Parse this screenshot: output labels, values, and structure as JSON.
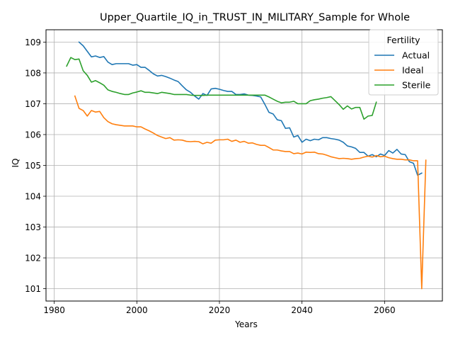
{
  "chart_data": {
    "type": "line",
    "title": "Upper_Quartile_IQ_in_TRUST_IN_MILITARY_Sample for Whole",
    "xlabel": "Years",
    "ylabel": "IQ",
    "xlim": [
      1978,
      2074
    ],
    "ylim": [
      100.6,
      109.4
    ],
    "xticks": [
      1980,
      2000,
      2020,
      2040,
      2060
    ],
    "yticks": [
      101,
      102,
      103,
      104,
      105,
      106,
      107,
      108,
      109
    ],
    "grid": true,
    "legend": {
      "title": "Fertility",
      "placement": "top-right"
    },
    "colors": {
      "Actual": "#1f77b4",
      "Ideal": "#ff7f0e",
      "Sterile": "#2ca02c"
    },
    "series": [
      {
        "name": "Actual",
        "x": [
          1986,
          1987,
          1988,
          1989,
          1990,
          1991,
          1992,
          1993,
          1994,
          1995,
          1996,
          1997,
          1998,
          1999,
          2000,
          2001,
          2002,
          2003,
          2004,
          2005,
          2006,
          2007,
          2008,
          2009,
          2010,
          2011,
          2012,
          2013,
          2014,
          2015,
          2016,
          2017,
          2018,
          2019,
          2020,
          2021,
          2022,
          2023,
          2024,
          2025,
          2026,
          2027,
          2028,
          2029,
          2030,
          2031,
          2032,
          2033,
          2034,
          2035,
          2036,
          2037,
          2038,
          2039,
          2040,
          2041,
          2042,
          2043,
          2044,
          2045,
          2046,
          2047,
          2048,
          2049,
          2050,
          2051,
          2052,
          2053,
          2054,
          2055,
          2056,
          2057,
          2058,
          2059,
          2060,
          2061,
          2062,
          2063,
          2064,
          2065,
          2066,
          2067,
          2068,
          2069,
          2070
        ],
        "y": [
          109.0,
          108.88,
          108.7,
          108.52,
          108.55,
          108.5,
          108.53,
          108.35,
          108.27,
          108.3,
          108.3,
          108.3,
          108.3,
          108.25,
          108.27,
          108.18,
          108.18,
          108.08,
          107.97,
          107.9,
          107.92,
          107.88,
          107.83,
          107.77,
          107.72,
          107.58,
          107.45,
          107.37,
          107.25,
          107.15,
          107.33,
          107.27,
          107.48,
          107.5,
          107.47,
          107.43,
          107.4,
          107.4,
          107.3,
          107.3,
          107.32,
          107.28,
          107.27,
          107.25,
          107.22,
          106.98,
          106.72,
          106.67,
          106.48,
          106.45,
          106.2,
          106.22,
          105.92,
          105.97,
          105.75,
          105.85,
          105.8,
          105.85,
          105.83,
          105.9,
          105.9,
          105.87,
          105.85,
          105.82,
          105.75,
          105.63,
          105.6,
          105.55,
          105.42,
          105.42,
          105.3,
          105.35,
          105.28,
          105.37,
          105.32,
          105.48,
          105.4,
          105.52,
          105.37,
          105.35,
          105.12,
          105.07,
          104.68,
          104.75,
          null
        ]
      },
      {
        "name": "Ideal",
        "x": [
          1985,
          1986,
          1987,
          1988,
          1989,
          1990,
          1991,
          1992,
          1993,
          1994,
          1995,
          1996,
          1997,
          1998,
          1999,
          2000,
          2001,
          2002,
          2003,
          2004,
          2005,
          2006,
          2007,
          2008,
          2009,
          2010,
          2011,
          2012,
          2013,
          2014,
          2015,
          2016,
          2017,
          2018,
          2019,
          2020,
          2021,
          2022,
          2023,
          2024,
          2025,
          2026,
          2027,
          2028,
          2029,
          2030,
          2031,
          2032,
          2033,
          2034,
          2035,
          2036,
          2037,
          2038,
          2039,
          2040,
          2041,
          2042,
          2043,
          2044,
          2045,
          2046,
          2047,
          2048,
          2049,
          2050,
          2051,
          2052,
          2053,
          2054,
          2055,
          2056,
          2057,
          2058,
          2059,
          2060,
          2061,
          2062,
          2063,
          2064,
          2065,
          2066,
          2067,
          2068,
          2069,
          2070
        ],
        "y": [
          107.25,
          106.85,
          106.78,
          106.6,
          106.78,
          106.73,
          106.75,
          106.55,
          106.42,
          106.35,
          106.32,
          106.3,
          106.28,
          106.28,
          106.28,
          106.25,
          106.25,
          106.18,
          106.12,
          106.05,
          105.97,
          105.92,
          105.87,
          105.9,
          105.82,
          105.83,
          105.82,
          105.78,
          105.77,
          105.78,
          105.77,
          105.7,
          105.75,
          105.72,
          105.82,
          105.83,
          105.83,
          105.85,
          105.78,
          105.82,
          105.75,
          105.78,
          105.72,
          105.73,
          105.68,
          105.65,
          105.65,
          105.58,
          105.5,
          105.5,
          105.47,
          105.45,
          105.45,
          105.38,
          105.4,
          105.37,
          105.43,
          105.42,
          105.43,
          105.38,
          105.37,
          105.33,
          105.28,
          105.25,
          105.22,
          105.23,
          105.22,
          105.2,
          105.22,
          105.23,
          105.27,
          105.3,
          105.27,
          105.32,
          105.28,
          105.3,
          105.25,
          105.22,
          105.2,
          105.2,
          105.18,
          105.18,
          105.15,
          105.15,
          101.0,
          105.17
        ]
      },
      {
        "name": "Sterile",
        "x": [
          1983,
          1984,
          1985,
          1986,
          1987,
          1988,
          1989,
          1990,
          1991,
          1992,
          1993,
          1994,
          1995,
          1996,
          1997,
          1998,
          1999,
          2000,
          2001,
          2002,
          2003,
          2004,
          2005,
          2006,
          2007,
          2008,
          2009,
          2010,
          2011,
          2012,
          2013,
          2014,
          2015,
          2016,
          2017,
          2018,
          2019,
          2020,
          2021,
          2022,
          2023,
          2024,
          2025,
          2026,
          2027,
          2028,
          2029,
          2030,
          2031,
          2032,
          2033,
          2034,
          2035,
          2036,
          2037,
          2038,
          2039,
          2040,
          2041,
          2042,
          2043,
          2044,
          2045,
          2046,
          2047,
          2048,
          2049,
          2050,
          2051,
          2052,
          2053,
          2054,
          2055,
          2056,
          2057,
          2058
        ],
        "y": [
          108.22,
          108.5,
          108.43,
          108.45,
          108.07,
          107.92,
          107.7,
          107.75,
          107.68,
          107.6,
          107.45,
          107.4,
          107.37,
          107.33,
          107.3,
          107.3,
          107.35,
          107.38,
          107.42,
          107.37,
          107.37,
          107.35,
          107.33,
          107.37,
          107.35,
          107.33,
          107.3,
          107.3,
          107.3,
          107.3,
          107.28,
          107.27,
          107.27,
          107.27,
          107.28,
          107.28,
          107.28,
          107.28,
          107.28,
          107.28,
          107.28,
          107.28,
          107.28,
          107.28,
          107.28,
          107.28,
          107.28,
          107.28,
          107.28,
          107.22,
          107.15,
          107.08,
          107.03,
          107.05,
          107.05,
          107.08,
          107.0,
          107.0,
          107.0,
          107.1,
          107.13,
          107.15,
          107.18,
          107.2,
          107.23,
          107.1,
          106.97,
          106.82,
          106.93,
          106.83,
          106.88,
          106.88,
          106.5,
          106.6,
          106.62,
          107.05
        ]
      }
    ]
  }
}
